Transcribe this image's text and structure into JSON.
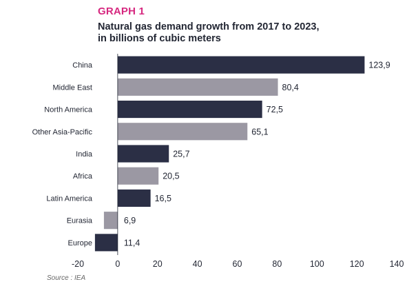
{
  "chart_data": {
    "type": "bar",
    "orientation": "horizontal",
    "label": "GRAPH 1",
    "title": "Natural gas demand growth from 2017 to 2023,\nin billions of cubic meters",
    "categories": [
      "China",
      "Middle East",
      "North America",
      "Other Asia-Pacific",
      "India",
      "Africa",
      "Latin America",
      "Eurasia",
      "Europe"
    ],
    "values": [
      123.9,
      80.4,
      72.5,
      65.1,
      25.7,
      20.5,
      16.5,
      -6.9,
      -11.4
    ],
    "value_labels": [
      "123,9",
      "80,4",
      "72,5",
      "65,1",
      "25,7",
      "20,5",
      "16,5",
      "6,9",
      "11,4"
    ],
    "bar_colors": [
      "#2b2f45",
      "#9b98a3",
      "#2b2f45",
      "#9b98a3",
      "#2b2f45",
      "#9b98a3",
      "#2b2f45",
      "#9b98a3",
      "#2b2f45"
    ],
    "xlim": [
      -20,
      140
    ],
    "xticks": [
      -20,
      0,
      20,
      40,
      60,
      80,
      100,
      120,
      140
    ],
    "xtick_labels": [
      "-20",
      "0",
      "20",
      "40",
      "60",
      "80",
      "100",
      "120",
      "140"
    ],
    "grid": false,
    "legend": "none",
    "source": "Source : IEA"
  },
  "colors": {
    "accent": "#d6287f",
    "dark_bar": "#2b2f45",
    "light_bar": "#9b98a3",
    "text": "#222633"
  }
}
